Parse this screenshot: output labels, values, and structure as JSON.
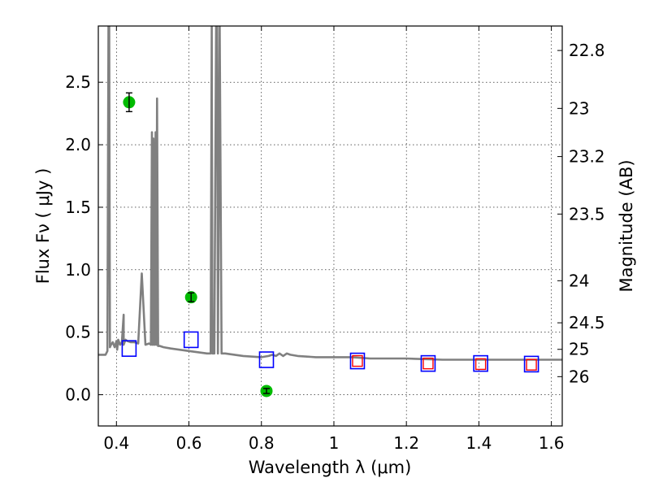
{
  "chart_data": {
    "type": "scatter",
    "xlabel": "Wavelength  λ (μm)",
    "ylabel": "Flux  Fν  ( μJy )",
    "y2label": "Magnitude (AB)",
    "xlim": [
      0.35,
      1.63
    ],
    "ylim": [
      -0.25,
      2.95
    ],
    "grid": true,
    "x_ticks": [
      {
        "v": 0.4,
        "label": "0.4"
      },
      {
        "v": 0.6,
        "label": "0.6"
      },
      {
        "v": 0.8,
        "label": "0.8"
      },
      {
        "v": 1.0,
        "label": "1"
      },
      {
        "v": 1.2,
        "label": "1.2"
      },
      {
        "v": 1.4,
        "label": "1.4"
      },
      {
        "v": 1.6,
        "label": "1.6"
      }
    ],
    "y_ticks": [
      {
        "v": 0.0,
        "label": "0.0"
      },
      {
        "v": 0.5,
        "label": "0.5"
      },
      {
        "v": 1.0,
        "label": "1.0"
      },
      {
        "v": 1.5,
        "label": "1.5"
      },
      {
        "v": 2.0,
        "label": "2.0"
      },
      {
        "v": 2.5,
        "label": "2.5"
      }
    ],
    "mag_ticks": [
      {
        "mag": 22.8,
        "label": "22.8"
      },
      {
        "mag": 23.0,
        "label": "23"
      },
      {
        "mag": 23.2,
        "label": "23.2"
      },
      {
        "mag": 23.5,
        "label": "23.5"
      },
      {
        "mag": 24.0,
        "label": "24"
      },
      {
        "mag": 24.5,
        "label": "24.5"
      },
      {
        "mag": 25.0,
        "label": "25"
      },
      {
        "mag": 26.0,
        "label": "26"
      }
    ],
    "series": [
      {
        "kind": "model_spectrum",
        "color": "#808080",
        "x": [
          0.35,
          0.37,
          0.375,
          0.378,
          0.38,
          0.382,
          0.385,
          0.39,
          0.395,
          0.4,
          0.402,
          0.405,
          0.41,
          0.415,
          0.42,
          0.42,
          0.425,
          0.43,
          0.44,
          0.45,
          0.46,
          0.47,
          0.48,
          0.49,
          0.495,
          0.498,
          0.5,
          0.502,
          0.505,
          0.508,
          0.51,
          0.512,
          0.515,
          0.52,
          0.53,
          0.55,
          0.6,
          0.65,
          0.66,
          0.663,
          0.665,
          0.67,
          0.675,
          0.678,
          0.68,
          0.685,
          0.69,
          0.7,
          0.75,
          0.8,
          0.82,
          0.83,
          0.84,
          0.85,
          0.86,
          0.87,
          0.88,
          0.9,
          0.95,
          1.0,
          1.05,
          1.1,
          1.2,
          1.3,
          1.4,
          1.5,
          1.6,
          1.63
        ],
        "y": [
          0.32,
          0.32,
          0.35,
          2.95,
          2.95,
          0.38,
          0.4,
          0.42,
          0.38,
          0.43,
          0.36,
          0.44,
          0.4,
          0.42,
          0.64,
          0.4,
          0.44,
          0.43,
          0.42,
          0.42,
          0.41,
          0.97,
          0.4,
          0.41,
          0.4,
          2.1,
          0.4,
          2.05,
          0.4,
          2.1,
          0.4,
          2.37,
          0.39,
          0.39,
          0.38,
          0.37,
          0.35,
          0.33,
          0.33,
          2.95,
          0.33,
          0.33,
          2.95,
          2.95,
          0.33,
          2.95,
          0.33,
          0.33,
          0.31,
          0.3,
          0.31,
          0.32,
          0.31,
          0.33,
          0.31,
          0.33,
          0.32,
          0.31,
          0.3,
          0.3,
          0.3,
          0.29,
          0.29,
          0.28,
          0.28,
          0.28,
          0.28,
          0.28
        ]
      },
      {
        "kind": "observed_photometry",
        "color": "#00bb00",
        "x": [
          0.435,
          0.606,
          0.814
        ],
        "y": [
          2.34,
          0.78,
          0.03
        ],
        "err": [
          0.075,
          0.035,
          0.02
        ]
      },
      {
        "kind": "model_photometry_blue",
        "color": "#0000ff",
        "x": [
          0.435,
          0.606,
          0.814,
          1.065,
          1.26,
          1.405,
          1.545
        ],
        "y": [
          0.37,
          0.44,
          0.28,
          0.27,
          0.25,
          0.25,
          0.245
        ]
      },
      {
        "kind": "model_photometry_red",
        "color": "#ff0000",
        "x": [
          1.065,
          1.26,
          1.405,
          1.545
        ],
        "y": [
          0.27,
          0.25,
          0.245,
          0.24
        ]
      }
    ]
  }
}
